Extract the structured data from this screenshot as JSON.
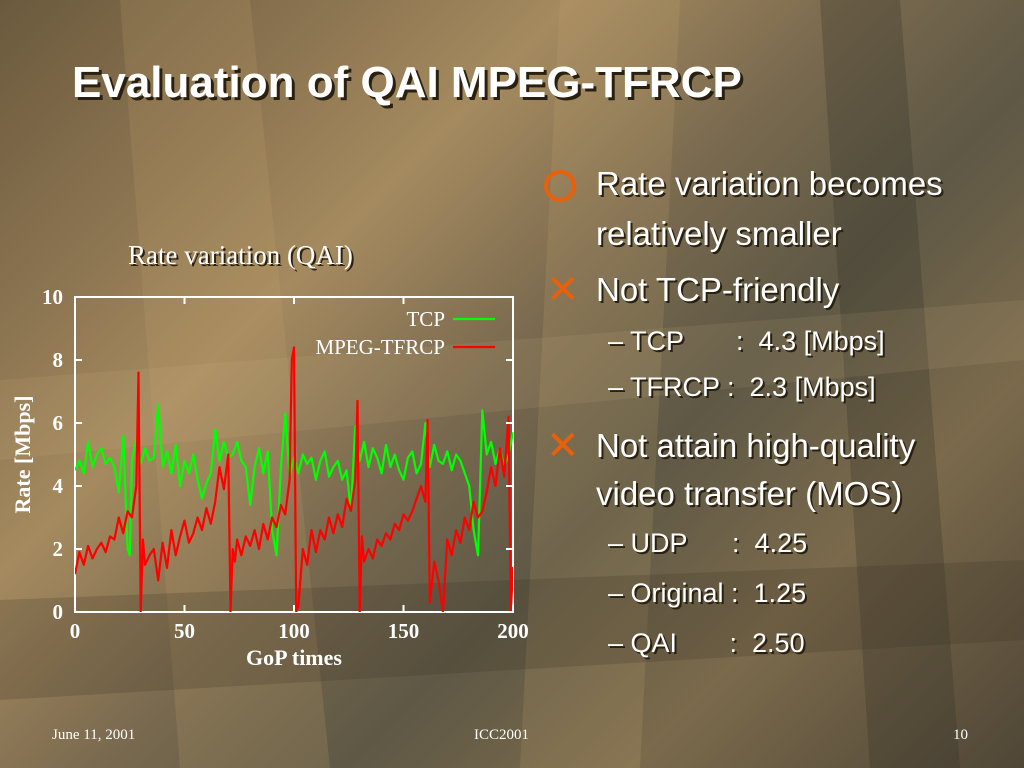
{
  "slide": {
    "title": "Evaluation of QAI MPEG-TFRCP",
    "footer": {
      "date": "June 11, 2001",
      "center": "ICC2001",
      "page": "10"
    }
  },
  "bullets": [
    {
      "marker": "circle",
      "lines": [
        "Rate variation becomes",
        "relatively smaller"
      ]
    },
    {
      "marker": "cross",
      "lines": [
        "Not TCP-friendly"
      ],
      "subs": [
        "– TCP       :  4.3 [Mbps]",
        "– TFRCP :  2.3 [Mbps]"
      ]
    },
    {
      "marker": "cross",
      "lines": [
        "Not attain high-quality",
        "video transfer (MOS)"
      ],
      "subs": [
        "– UDP      :  4.25",
        "– Original :  1.25",
        "– QAI       :  2.50"
      ]
    }
  ],
  "colors": {
    "accent": "#e8600a",
    "tcp": "#00ff00",
    "tfrcp": "#ff0000",
    "text": "#ffffff"
  },
  "icons": {
    "bullet_1": "circle-bullet-icon",
    "bullet_2": "cross-bullet-icon",
    "bullet_3": "cross-bullet-icon"
  },
  "chart_data": {
    "type": "line",
    "title": "Rate variation (QAI)",
    "xlabel": "GoP times",
    "ylabel": "Rate [Mbps]",
    "xlim": [
      0,
      200
    ],
    "ylim": [
      0,
      10
    ],
    "xticks": [
      0,
      50,
      100,
      150,
      200
    ],
    "yticks": [
      0,
      2,
      4,
      6,
      8,
      10
    ],
    "grid": false,
    "legend": "top-right",
    "series": [
      {
        "name": "TCP",
        "color": "#00ff00",
        "x": [
          0,
          2,
          4,
          6,
          8,
          10,
          12,
          14,
          16,
          18,
          20,
          22,
          24,
          25,
          26,
          28,
          30,
          32,
          34,
          36,
          38,
          40,
          42,
          44,
          46,
          48,
          50,
          52,
          54,
          56,
          58,
          60,
          62,
          64,
          66,
          68,
          70,
          72,
          74,
          76,
          78,
          80,
          82,
          84,
          86,
          88,
          90,
          92,
          94,
          96,
          98,
          100,
          102,
          104,
          106,
          108,
          110,
          112,
          114,
          116,
          118,
          120,
          122,
          124,
          126,
          128,
          130,
          132,
          134,
          136,
          138,
          140,
          142,
          144,
          146,
          148,
          150,
          152,
          154,
          156,
          158,
          160,
          162,
          164,
          166,
          168,
          170,
          172,
          174,
          176,
          178,
          180,
          182,
          184,
          186,
          188,
          190,
          192,
          194,
          196,
          198,
          200
        ],
        "y": [
          4.5,
          4.8,
          4.4,
          5.4,
          4.6,
          5.0,
          5.2,
          4.7,
          4.9,
          4.6,
          3.8,
          5.6,
          2.0,
          1.8,
          4.8,
          5.5,
          4.7,
          5.2,
          4.8,
          4.9,
          6.6,
          4.6,
          5.1,
          4.4,
          5.3,
          4.0,
          4.8,
          4.4,
          5.0,
          4.2,
          3.6,
          4.1,
          4.4,
          5.8,
          4.8,
          5.4,
          4.9,
          5.0,
          5.4,
          4.8,
          4.6,
          3.4,
          4.6,
          5.2,
          4.4,
          5.1,
          2.6,
          1.8,
          4.6,
          6.3,
          4.3,
          4.9,
          4.4,
          5.0,
          4.7,
          4.9,
          4.2,
          4.8,
          5.1,
          4.3,
          4.6,
          4.8,
          4.2,
          4.5,
          3.2,
          5.9,
          4.8,
          5.4,
          4.6,
          5.2,
          4.9,
          4.4,
          5.3,
          4.6,
          5.0,
          4.5,
          4.2,
          4.9,
          5.1,
          4.4,
          4.7,
          6.0,
          4.6,
          5.3,
          4.8,
          4.7,
          5.1,
          4.5,
          5.0,
          4.8,
          4.4,
          4.0,
          2.6,
          1.8,
          6.4,
          5.0,
          5.4,
          4.7,
          5.2,
          4.6,
          5.0,
          5.7
        ]
      },
      {
        "name": "MPEG-TFRCP",
        "color": "#ff0000",
        "x": [
          0,
          2,
          4,
          6,
          8,
          10,
          12,
          14,
          16,
          18,
          20,
          22,
          24,
          26,
          28,
          29,
          30,
          31,
          32,
          34,
          36,
          38,
          40,
          42,
          44,
          46,
          48,
          50,
          52,
          54,
          56,
          58,
          60,
          62,
          64,
          66,
          68,
          70,
          71,
          72,
          73,
          74,
          76,
          78,
          80,
          82,
          84,
          86,
          88,
          90,
          92,
          94,
          96,
          98,
          99,
          100,
          101,
          102,
          104,
          106,
          108,
          110,
          112,
          114,
          116,
          118,
          120,
          122,
          124,
          126,
          128,
          129,
          130,
          131,
          132,
          134,
          136,
          138,
          140,
          142,
          144,
          146,
          148,
          150,
          152,
          154,
          156,
          158,
          160,
          161,
          162,
          164,
          166,
          168,
          170,
          172,
          174,
          176,
          178,
          180,
          182,
          184,
          186,
          188,
          190,
          192,
          194,
          196,
          198,
          199,
          200,
          201
        ],
        "y": [
          1.2,
          1.9,
          1.5,
          2.1,
          1.7,
          2.0,
          2.2,
          1.9,
          2.4,
          2.3,
          3.0,
          2.5,
          3.2,
          3.0,
          4.0,
          7.6,
          0.0,
          2.3,
          1.5,
          1.8,
          2.0,
          1.0,
          2.2,
          1.4,
          2.6,
          1.8,
          2.4,
          2.9,
          2.2,
          2.5,
          3.0,
          2.6,
          3.3,
          2.8,
          3.5,
          4.6,
          3.9,
          5.0,
          0.0,
          2.0,
          1.6,
          2.3,
          1.8,
          2.4,
          2.1,
          2.6,
          2.0,
          2.8,
          2.3,
          3.0,
          2.7,
          3.4,
          3.1,
          4.2,
          8.0,
          8.4,
          0.0,
          0.2,
          2.0,
          1.5,
          2.6,
          1.9,
          2.6,
          2.3,
          3.0,
          2.5,
          3.1,
          2.7,
          3.6,
          3.2,
          4.2,
          6.7,
          0.0,
          2.4,
          1.6,
          2.0,
          1.7,
          2.3,
          2.1,
          2.5,
          2.3,
          2.8,
          2.6,
          3.1,
          2.9,
          3.2,
          3.6,
          4.0,
          3.5,
          6.1,
          0.3,
          1.6,
          1.0,
          0.0,
          2.3,
          1.8,
          2.6,
          2.2,
          3.0,
          2.6,
          3.5,
          3.0,
          3.2,
          3.8,
          4.6,
          4.0,
          5.2,
          4.3,
          6.2,
          0.0,
          1.4,
          1.0
        ]
      }
    ]
  }
}
